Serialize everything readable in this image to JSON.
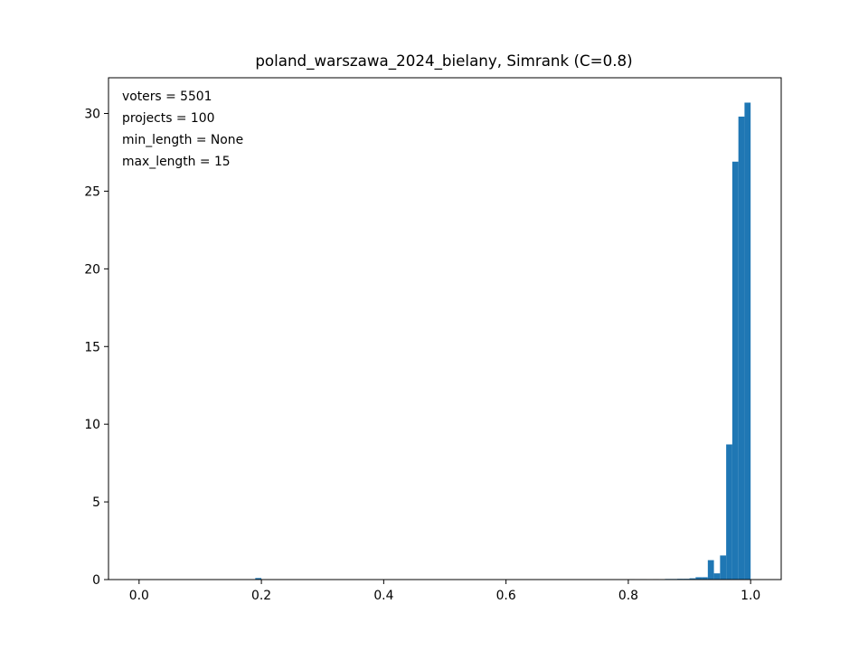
{
  "chart_data": {
    "type": "bar",
    "title": "poland_warszawa_2024_bielany, Simrank (C=0.8)",
    "xlabel": "",
    "ylabel": "",
    "xlim": [
      -0.05,
      1.05
    ],
    "ylim": [
      0,
      32.3
    ],
    "grid": false,
    "x_ticks": [
      0.0,
      0.2,
      0.4,
      0.6,
      0.8,
      1.0
    ],
    "x_tick_labels": [
      "0.0",
      "0.2",
      "0.4",
      "0.6",
      "0.8",
      "1.0"
    ],
    "y_ticks": [
      0,
      5,
      10,
      15,
      20,
      25,
      30
    ],
    "y_tick_labels": [
      "0",
      "5",
      "10",
      "15",
      "20",
      "25",
      "30"
    ],
    "bar_color": "#1f77b4",
    "bin_width": 0.01,
    "bins": [
      {
        "x": 0.19,
        "value": 0.1
      },
      {
        "x": 0.72,
        "value": 0.02
      },
      {
        "x": 0.78,
        "value": 0.02
      },
      {
        "x": 0.8,
        "value": 0.03
      },
      {
        "x": 0.82,
        "value": 0.03
      },
      {
        "x": 0.84,
        "value": 0.03
      },
      {
        "x": 0.86,
        "value": 0.04
      },
      {
        "x": 0.87,
        "value": 0.04
      },
      {
        "x": 0.88,
        "value": 0.05
      },
      {
        "x": 0.89,
        "value": 0.05
      },
      {
        "x": 0.9,
        "value": 0.08
      },
      {
        "x": 0.91,
        "value": 0.15
      },
      {
        "x": 0.92,
        "value": 0.15
      },
      {
        "x": 0.93,
        "value": 1.25
      },
      {
        "x": 0.94,
        "value": 0.4
      },
      {
        "x": 0.95,
        "value": 1.55
      },
      {
        "x": 0.96,
        "value": 8.7
      },
      {
        "x": 0.97,
        "value": 26.9
      },
      {
        "x": 0.98,
        "value": 29.8
      },
      {
        "x": 0.99,
        "value": 30.7
      }
    ],
    "annotations": [
      "voters = 5501",
      "projects = 100",
      "min_length = None",
      "max_length = 15"
    ]
  }
}
